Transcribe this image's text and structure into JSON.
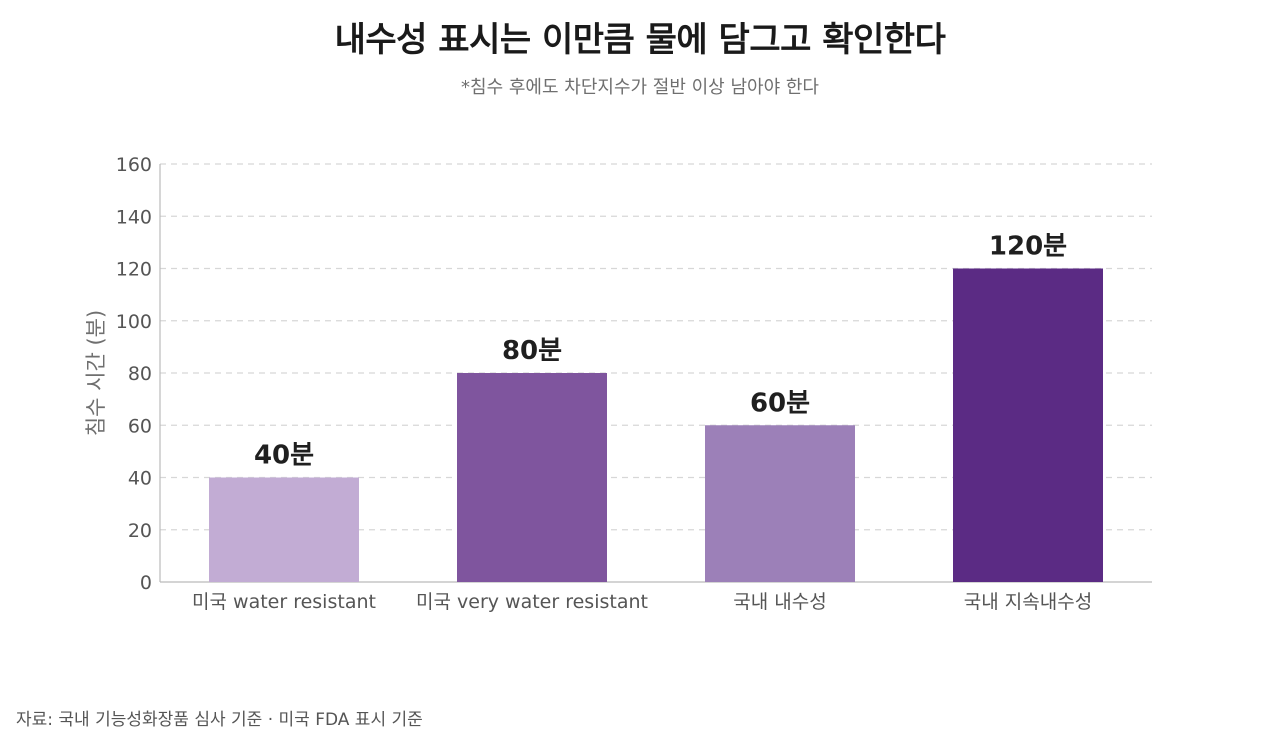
{
  "title": "내수성 표시는 이만큼 물에 담그고 확인한다",
  "subtitle": "*침수 후에도 차단지수가 절반 이상 남아야 한다",
  "source": "자료: 국내 기능성화장품 심사 기준 · 미국 FDA 표시 기준",
  "chart_data": {
    "type": "bar",
    "categories": [
      "미국 water resistant",
      "미국 very water resistant",
      "국내 내수성",
      "국내 지속내수성"
    ],
    "values": [
      40,
      80,
      60,
      120
    ],
    "data_labels": [
      "40분",
      "80분",
      "60분",
      "120분"
    ],
    "colors": [
      "#c2acd4",
      "#7f559e",
      "#9c80b8",
      "#5b2b84"
    ],
    "ylabel": "침수 시간 (분)",
    "xlabel": "",
    "ylim": [
      0,
      160
    ],
    "yticks": [
      0,
      20,
      40,
      60,
      80,
      100,
      120,
      140,
      160
    ],
    "grid": true,
    "legend": "none"
  }
}
